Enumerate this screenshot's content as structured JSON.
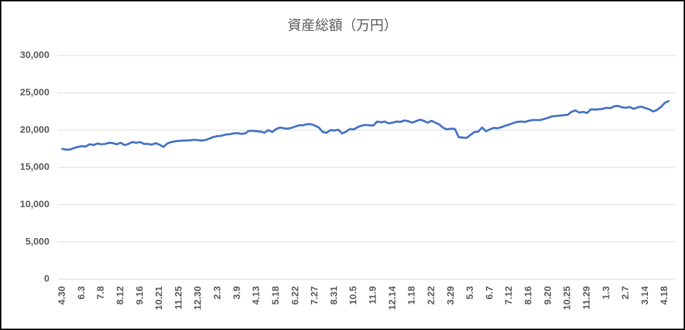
{
  "chart_data": {
    "type": "line",
    "title": "資産総額（万円）",
    "categories": [
      "4.30",
      null,
      null,
      null,
      null,
      "6.3",
      null,
      null,
      null,
      null,
      "7.8",
      null,
      null,
      null,
      null,
      "8.12",
      null,
      null,
      null,
      null,
      "9.16",
      null,
      null,
      null,
      null,
      "10.21",
      null,
      null,
      null,
      null,
      "11.25",
      null,
      null,
      null,
      null,
      "12.30",
      null,
      null,
      null,
      null,
      "2.3",
      null,
      null,
      null,
      null,
      "3.9",
      null,
      null,
      null,
      null,
      "4.13",
      null,
      null,
      null,
      null,
      "5.18",
      null,
      null,
      null,
      null,
      "6.22",
      null,
      null,
      null,
      null,
      "7.27",
      null,
      null,
      null,
      null,
      "8.31",
      null,
      null,
      null,
      null,
      "10.5",
      null,
      null,
      null,
      null,
      "11.9",
      null,
      null,
      null,
      null,
      "12.14",
      null,
      null,
      null,
      null,
      "1.18",
      null,
      null,
      null,
      null,
      "2.22",
      null,
      null,
      null,
      null,
      "3.29",
      null,
      null,
      null,
      null,
      "5.3",
      null,
      null,
      null,
      null,
      "6.7",
      null,
      null,
      null,
      null,
      "7.12",
      null,
      null,
      null,
      null,
      "8.16",
      null,
      null,
      null,
      null,
      "9.20",
      null,
      null,
      null,
      null,
      "10.25",
      null,
      null,
      null,
      null,
      "11.29",
      null,
      null,
      null,
      null,
      "1.3",
      null,
      null,
      null,
      null,
      "2.7",
      null,
      null,
      null,
      null,
      "3.14",
      null,
      null,
      null,
      null,
      "4.18",
      null
    ],
    "series": [
      {
        "color": "#4472c4",
        "values": [
          17480,
          17380,
          17400,
          17600,
          17750,
          17850,
          17800,
          18100,
          18000,
          18200,
          18100,
          18150,
          18300,
          18250,
          18100,
          18300,
          18000,
          18150,
          18400,
          18300,
          18400,
          18150,
          18150,
          18050,
          18250,
          18050,
          17750,
          18200,
          18400,
          18500,
          18550,
          18600,
          18600,
          18650,
          18700,
          18650,
          18600,
          18700,
          18900,
          19100,
          19200,
          19250,
          19400,
          19450,
          19550,
          19600,
          19500,
          19550,
          19900,
          19900,
          19850,
          19800,
          19650,
          20000,
          19750,
          20150,
          20350,
          20250,
          20200,
          20300,
          20500,
          20650,
          20650,
          20800,
          20800,
          20600,
          20350,
          19750,
          19650,
          20000,
          19950,
          20050,
          19550,
          19800,
          20150,
          20100,
          20400,
          20600,
          20700,
          20650,
          20600,
          21150,
          21050,
          21150,
          20900,
          21000,
          21150,
          21100,
          21300,
          21200,
          21000,
          21200,
          21400,
          21250,
          21000,
          21250,
          21000,
          20750,
          20300,
          20100,
          20200,
          20150,
          19050,
          19000,
          18950,
          19350,
          19750,
          19800,
          20350,
          19850,
          20100,
          20300,
          20250,
          20400,
          20600,
          20750,
          20950,
          21100,
          21150,
          21100,
          21250,
          21350,
          21350,
          21350,
          21500,
          21650,
          21850,
          21900,
          21950,
          22000,
          22050,
          22450,
          22650,
          22350,
          22450,
          22300,
          22800,
          22750,
          22800,
          22850,
          23000,
          22950,
          23200,
          23250,
          23050,
          23000,
          23100,
          22850,
          23050,
          23150,
          22950,
          22800,
          22500,
          22700,
          23100,
          23650,
          23900
        ]
      }
    ],
    "ylim": [
      0,
      30000
    ],
    "yticks": [
      0,
      {
        "value": 5000,
        "label": "5,000"
      },
      {
        "value": 10000,
        "label": "10,000"
      },
      {
        "value": 15000,
        "label": "15,000"
      },
      {
        "value": 20000,
        "label": "20,000"
      },
      {
        "value": 25000,
        "label": "25,000"
      },
      {
        "value": 30000,
        "label": "30,000"
      }
    ],
    "grid": true
  }
}
